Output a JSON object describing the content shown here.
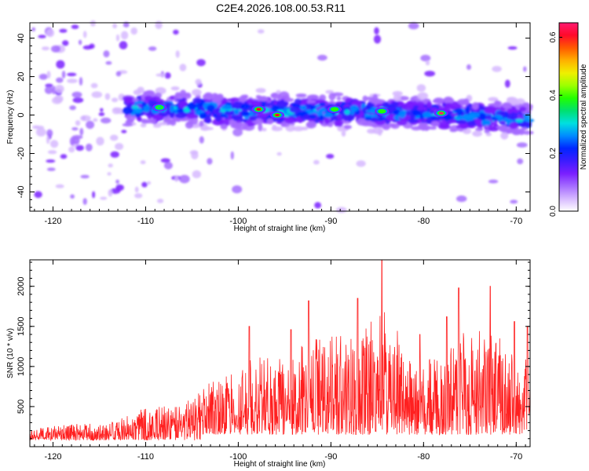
{
  "title": "C2E4.2026.108.00.53.R11",
  "chart_data": [
    {
      "type": "heatmap",
      "title": "",
      "xlabel": "Height of straight line (km)",
      "ylabel": "Frequency (Hz)",
      "xlim": [
        -122.5,
        -68.5
      ],
      "ylim": [
        -50,
        48
      ],
      "xticks": [
        "-120",
        "-110",
        "-100",
        "-90",
        "-80",
        "-70"
      ],
      "yticks": [
        "-40",
        "-20",
        "0",
        "20",
        "40"
      ],
      "colorbar": {
        "label": "Normalized spectral amplitude",
        "range": [
          0.0,
          0.65
        ],
        "ticks": [
          "0.0",
          "0.2",
          "0.4",
          "0.6"
        ],
        "colors": [
          "#ffffff",
          "#d6b8ff",
          "#a56cff",
          "#7a1fff",
          "#3c1cff",
          "#0026ff",
          "#008bff",
          "#00e0e0",
          "#00e070",
          "#22ff00",
          "#9cff00",
          "#f0f000",
          "#ffb000",
          "#ff5a00",
          "#ff0a2a",
          "#ff1a70"
        ]
      },
      "description_band": {
        "center_frequency_hz": [
          [
            -122,
            -2
          ],
          [
            -110,
            4
          ],
          [
            -100,
            2
          ],
          [
            -90,
            2
          ],
          [
            -80,
            1
          ],
          [
            -70,
            -2
          ]
        ],
        "peaks": [
          {
            "x": -97.8,
            "y": 3,
            "amplitude": 0.62
          },
          {
            "x": -95.8,
            "y": 0,
            "amplitude": 0.6
          },
          {
            "x": -78.1,
            "y": 1,
            "amplitude": 0.64
          },
          {
            "x": -89.6,
            "y": 3,
            "amplitude": 0.4
          },
          {
            "x": -84.5,
            "y": 2,
            "amplitude": 0.38
          },
          {
            "x": -108.5,
            "y": 4,
            "amplitude": 0.35
          }
        ]
      },
      "grid": false
    },
    {
      "type": "line",
      "title": "",
      "xlabel": "Height of straight line (km)",
      "ylabel": "SNR (10 * v/v)",
      "xlim": [
        -122.5,
        -68.5
      ],
      "ylim": [
        0,
        2330
      ],
      "xticks": [
        "-120",
        "-110",
        "-100",
        "-90",
        "-80",
        "-70"
      ],
      "yticks": [
        "500",
        "1000",
        "1500",
        "2000"
      ],
      "series": [
        {
          "color": "#ff2020",
          "envelope": [
            {
              "x": -122,
              "peak": 300
            },
            {
              "x": -118,
              "peak": 380
            },
            {
              "x": -114,
              "peak": 380
            },
            {
              "x": -110,
              "peak": 650
            },
            {
              "x": -106,
              "peak": 700
            },
            {
              "x": -103,
              "peak": 1100
            },
            {
              "x": -100,
              "peak": 1300
            },
            {
              "x": -98.8,
              "peak": 1500
            },
            {
              "x": -94.3,
              "peak": 1460
            },
            {
              "x": -92.4,
              "peak": 1820
            },
            {
              "x": -87.1,
              "peak": 1850
            },
            {
              "x": -84.5,
              "peak": 2330
            },
            {
              "x": -80.4,
              "peak": 1400
            },
            {
              "x": -77.5,
              "peak": 1620
            },
            {
              "x": -76.2,
              "peak": 1980
            },
            {
              "x": -72.8,
              "peak": 2000
            },
            {
              "x": -70.2,
              "peak": 1560
            },
            {
              "x": -68.8,
              "peak": 1500
            }
          ]
        }
      ],
      "grid": false
    }
  ]
}
